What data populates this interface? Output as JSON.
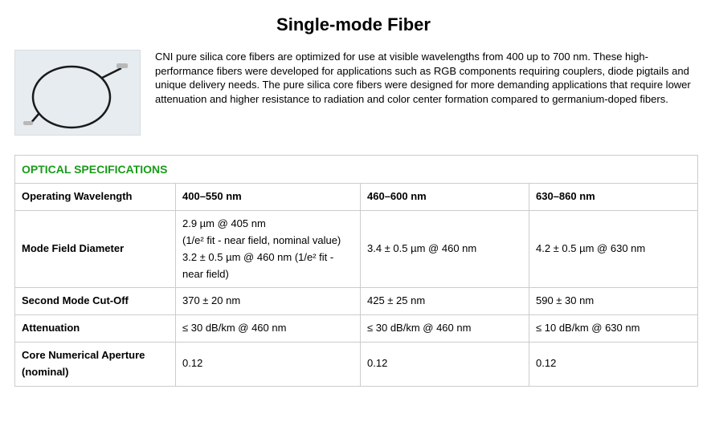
{
  "title": "Single-mode Fiber",
  "description": "CNI pure silica core fibers are optimized for use at visible wavelengths from 400 up to 700 nm. These high-performance fibers were developed for applications such as RGB components requiring couplers, diode pigtails and unique delivery needs. The pure silica core fibers were designed for more demanding applications that require lower attenuation and higher resistance to radiation and color center formation compared to germanium-doped fibers.",
  "table": {
    "section_title": "OPTICAL SPECIFICATIONS",
    "section_color": "#1a9b1a",
    "border_color": "#cccccc",
    "rows": [
      {
        "label": "Operating Wavelength",
        "bold_cells": true,
        "c1": "400–550 nm",
        "c2": "460–600 nm",
        "c3": "630–860 nm"
      },
      {
        "label": "Mode Field Diameter",
        "c1": "2.9 µm @ 405 nm\n(1/e² fit - near field, nominal value)\n3.2 ± 0.5 µm @ 460 nm (1/e² fit - near field)",
        "c2": "3.4 ± 0.5 µm @ 460 nm",
        "c3": "4.2 ± 0.5 µm @ 630 nm"
      },
      {
        "label": "Second Mode Cut-Off",
        "c1": "370 ± 20 nm",
        "c2": "425 ± 25 nm",
        "c3": "590 ± 30 nm"
      },
      {
        "label": "Attenuation",
        "c1": "≤ 30 dB/km @ 460 nm",
        "c2": "≤ 30 dB/km @ 460 nm",
        "c3": "≤ 10 dB/km @ 630 nm"
      },
      {
        "label": "Core Numerical Aperture (nominal)",
        "c1": "0.12",
        "c2": "0.12",
        "c3": "0.12"
      }
    ]
  },
  "thumb": {
    "bg": "#e6ecf0",
    "stroke": "#1a1a1a",
    "connector": "#b8b8b8"
  }
}
